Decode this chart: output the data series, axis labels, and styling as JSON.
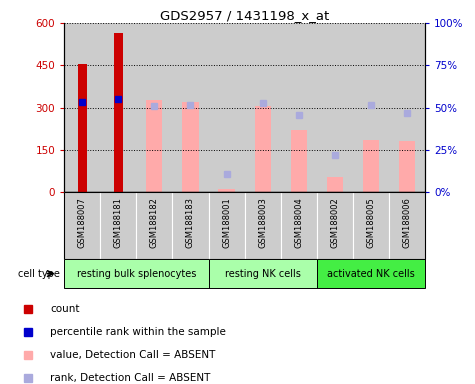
{
  "title": "GDS2957 / 1431198_x_at",
  "samples": [
    "GSM188007",
    "GSM188181",
    "GSM188182",
    "GSM188183",
    "GSM188001",
    "GSM188003",
    "GSM188004",
    "GSM188002",
    "GSM188005",
    "GSM188006"
  ],
  "cell_types": [
    {
      "label": "resting bulk splenocytes",
      "start": 0,
      "end": 4,
      "color": "#aaffaa"
    },
    {
      "label": "resting NK cells",
      "start": 4,
      "end": 7,
      "color": "#aaffaa"
    },
    {
      "label": "activated NK cells",
      "start": 7,
      "end": 10,
      "color": "#44ee44"
    }
  ],
  "count_values": [
    455,
    565,
    null,
    null,
    null,
    null,
    null,
    null,
    null,
    null
  ],
  "percentile_values": [
    320,
    330,
    null,
    null,
    null,
    null,
    null,
    null,
    null,
    null
  ],
  "absent_value_bars": [
    null,
    null,
    325,
    320,
    10,
    305,
    220,
    55,
    185,
    180
  ],
  "absent_rank_markers": [
    null,
    null,
    305,
    310,
    65,
    315,
    275,
    130,
    310,
    280
  ],
  "ylim_left": [
    0,
    600
  ],
  "ylim_right": [
    0,
    100
  ],
  "yticks_left": [
    0,
    150,
    300,
    450,
    600
  ],
  "ytick_labels_left": [
    "0",
    "150",
    "300",
    "450",
    "600"
  ],
  "yticks_right": [
    0,
    25,
    50,
    75,
    100
  ],
  "ytick_labels_right": [
    "0%",
    "25%",
    "50%",
    "75%",
    "100%"
  ],
  "colors": {
    "count": "#cc0000",
    "percentile": "#0000cc",
    "absent_value": "#ffaaaa",
    "absent_rank": "#aaaadd",
    "bg_sample": "#cccccc",
    "bg_celltype_light": "#aaffaa",
    "bg_celltype_dark": "#44ee44",
    "axis_left": "#cc0000",
    "axis_right": "#0000cc"
  },
  "legend": [
    {
      "label": "count",
      "color": "#cc0000"
    },
    {
      "label": "percentile rank within the sample",
      "color": "#0000cc"
    },
    {
      "label": "value, Detection Call = ABSENT",
      "color": "#ffaaaa"
    },
    {
      "label": "rank, Detection Call = ABSENT",
      "color": "#aaaadd"
    }
  ]
}
